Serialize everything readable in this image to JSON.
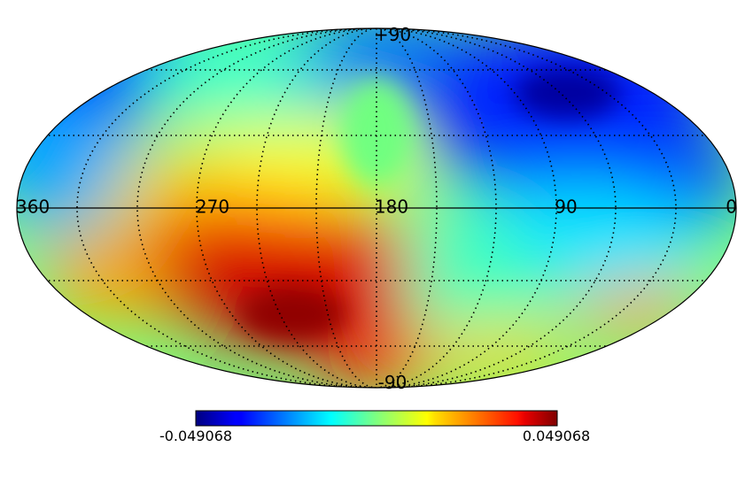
{
  "map": {
    "projection": "mollweide",
    "colormap": "jet",
    "lon_labels": [
      "360",
      "270",
      "180",
      "90",
      "0"
    ],
    "lat_top_label": "+90",
    "lat_bottom_label": "-90",
    "graticule": "dotted",
    "equator": "solid"
  },
  "colorbar": {
    "min": "-0.049068",
    "max": "0.049068",
    "orientation": "horizontal"
  }
}
